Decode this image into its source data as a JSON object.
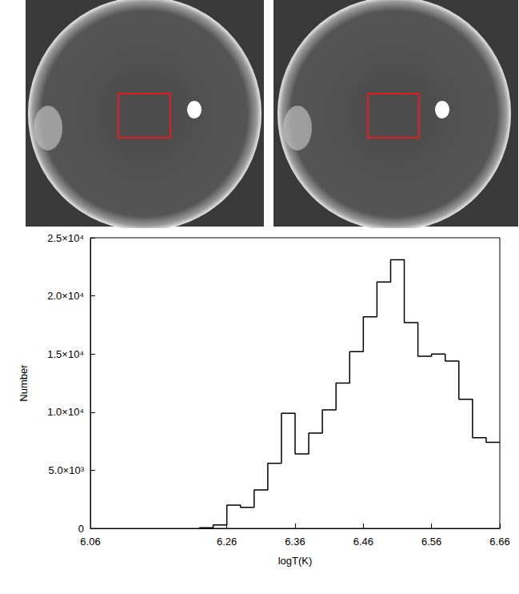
{
  "chart_data": {
    "type": "histogram",
    "x_label": "logT(K)",
    "y_label": "Number",
    "bins": [
      6.22,
      6.24,
      6.26,
      6.28,
      6.3,
      6.32,
      6.34,
      6.36,
      6.38,
      6.4,
      6.42,
      6.44,
      6.46,
      6.48,
      6.5,
      6.52,
      6.54,
      6.56,
      6.58,
      6.6,
      6.62,
      6.64,
      6.66
    ],
    "values": [
      50,
      300,
      2000,
      1800,
      3300,
      5600,
      9900,
      6400,
      8200,
      10200,
      12500,
      15200,
      18200,
      21200,
      23100,
      17700,
      14800,
      15000,
      14400,
      11100,
      7800,
      7400
    ],
    "color": "#000000",
    "xlim": [
      6.06,
      6.66
    ],
    "xticks": [
      6.06,
      6.26,
      6.36,
      6.46,
      6.56,
      6.66
    ],
    "ylim": [
      0,
      25000
    ],
    "yticks": [
      0,
      {
        "value": 5000,
        "label": "5.0×10³"
      },
      {
        "value": 10000,
        "label": "1.0×10⁴"
      },
      {
        "value": 15000,
        "label": "1.5×10⁴"
      },
      {
        "value": 20000,
        "label": "2.0×10⁴"
      },
      {
        "value": 25000,
        "label": "2.5×10⁴"
      }
    ],
    "grid": false
  }
}
